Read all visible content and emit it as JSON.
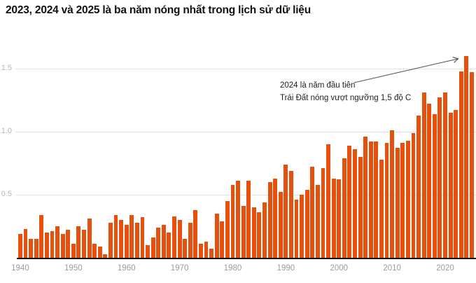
{
  "title": "2023, 2024 và 2025 là ba năm nóng nhất trong lịch sử dữ liệu",
  "annotation": {
    "line1": "2024 là năm đầu tiên",
    "line2": "Trái Đất nóng vượt ngưỡng 1,5 độ C"
  },
  "colors": {
    "bar": "#e5500f",
    "grid": "#e3e3e3",
    "axis_line": "#191919",
    "y_tick_label": "#b5b5b5",
    "x_tick_label": "#9c9c9c",
    "annotation_text": "#1f1f1f",
    "arrow": "#4a4a4a",
    "title": "#111111",
    "background": "#ffffff"
  },
  "chart_data": {
    "type": "bar",
    "title": "2023, 2024 và 2025 là ba năm nóng nhất trong lịch sử dữ liệu",
    "xlabel": "",
    "ylabel": "",
    "x_start_year": 1940,
    "x_end_year": 2025,
    "years": [
      1940,
      1941,
      1942,
      1943,
      1944,
      1945,
      1946,
      1947,
      1948,
      1949,
      1950,
      1951,
      1952,
      1953,
      1954,
      1955,
      1956,
      1957,
      1958,
      1959,
      1960,
      1961,
      1962,
      1963,
      1964,
      1965,
      1966,
      1967,
      1968,
      1969,
      1970,
      1971,
      1972,
      1973,
      1974,
      1975,
      1976,
      1977,
      1978,
      1979,
      1980,
      1981,
      1982,
      1983,
      1984,
      1985,
      1986,
      1987,
      1988,
      1989,
      1990,
      1991,
      1992,
      1993,
      1994,
      1995,
      1996,
      1997,
      1998,
      1999,
      2000,
      2001,
      2002,
      2003,
      2004,
      2005,
      2006,
      2007,
      2008,
      2009,
      2010,
      2011,
      2012,
      2013,
      2014,
      2015,
      2016,
      2017,
      2018,
      2019,
      2020,
      2021,
      2022,
      2023,
      2024,
      2025
    ],
    "values": [
      0.19,
      0.23,
      0.15,
      0.15,
      0.34,
      0.2,
      0.21,
      0.25,
      0.19,
      0.22,
      0.11,
      0.25,
      0.22,
      0.31,
      0.11,
      0.09,
      0.03,
      0.28,
      0.34,
      0.3,
      0.26,
      0.34,
      0.28,
      0.32,
      0.1,
      0.16,
      0.24,
      0.26,
      0.2,
      0.33,
      0.3,
      0.15,
      0.28,
      0.38,
      0.11,
      0.13,
      0.07,
      0.35,
      0.29,
      0.45,
      0.58,
      0.61,
      0.41,
      0.61,
      0.4,
      0.36,
      0.44,
      0.6,
      0.63,
      0.52,
      0.74,
      0.69,
      0.46,
      0.5,
      0.54,
      0.72,
      0.58,
      0.71,
      0.9,
      0.63,
      0.62,
      0.79,
      0.89,
      0.86,
      0.8,
      0.96,
      0.92,
      0.92,
      0.78,
      0.91,
      1.01,
      0.87,
      0.91,
      0.93,
      0.99,
      1.13,
      1.31,
      1.22,
      1.14,
      1.27,
      1.31,
      1.15,
      1.17,
      1.48,
      1.6,
      1.47
    ],
    "y_ticks": [
      0.5,
      1.0,
      1.5
    ],
    "y_tick_labels": [
      "0.5",
      "1.0",
      "1.5"
    ],
    "x_ticks": [
      1940,
      1950,
      1960,
      1970,
      1980,
      1990,
      2000,
      2010,
      2020
    ],
    "ylim": [
      0,
      1.65
    ],
    "grid": true,
    "legend": false,
    "annotation_text": [
      "2024 là năm đầu tiên",
      "Trái Đất nóng vượt ngưỡng 1,5 độ C"
    ]
  }
}
